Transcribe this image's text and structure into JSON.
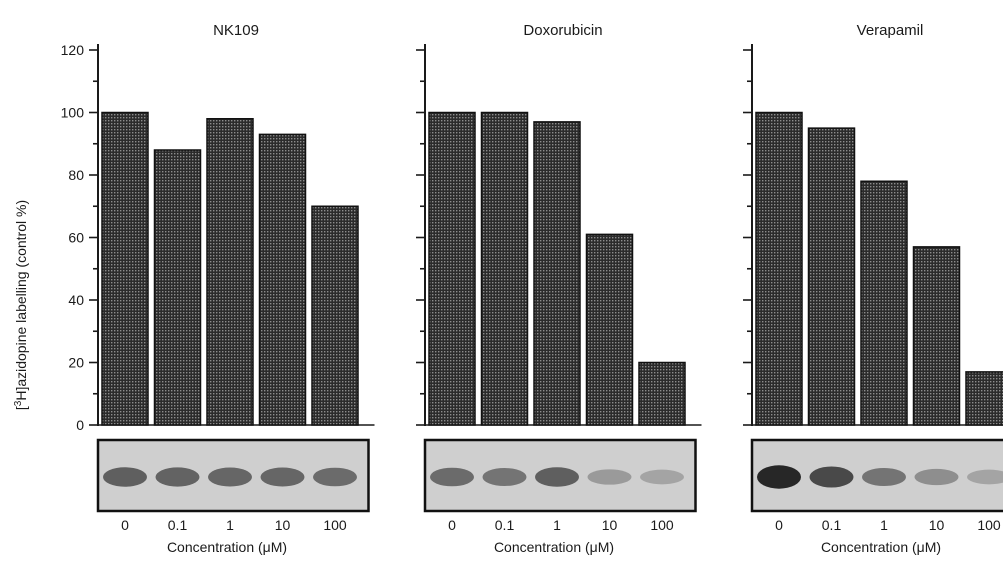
{
  "figure": {
    "ylabel_prefix": "[",
    "ylabel_sup": "3",
    "ylabel_suffix": "H]azidopine labelling (control %)"
  },
  "chart_data": [
    {
      "type": "bar",
      "title": "NK109",
      "categories": [
        "0",
        "0.1",
        "1",
        "10",
        "100"
      ],
      "values": [
        100,
        88,
        98,
        93,
        70
      ],
      "xlabel": "Concentration (μM)",
      "ylabel": "[3H]azidopine labelling (control %)",
      "ylim": [
        0,
        120
      ],
      "yticks": [
        "0",
        "20",
        "40",
        "60",
        "80",
        "100",
        "120"
      ],
      "blot_intensity": [
        0.62,
        0.6,
        0.58,
        0.58,
        0.55
      ]
    },
    {
      "type": "bar",
      "title": "Doxorubicin",
      "categories": [
        "0",
        "0.1",
        "1",
        "10",
        "100"
      ],
      "values": [
        100,
        100,
        97,
        61,
        20
      ],
      "xlabel": "Concentration (μM)",
      "ylim": [
        0,
        120
      ],
      "blot_intensity": [
        0.55,
        0.5,
        0.62,
        0.28,
        0.22
      ]
    },
    {
      "type": "bar",
      "title": "Verapamil",
      "categories": [
        "0",
        "0.1",
        "1",
        "10",
        "100"
      ],
      "values": [
        100,
        95,
        78,
        57,
        17
      ],
      "xlabel": "Concentration (μM)",
      "ylim": [
        0,
        120
      ],
      "blot_intensity": [
        0.95,
        0.75,
        0.5,
        0.35,
        0.22
      ]
    }
  ],
  "style": {
    "bar_fill": "#3a3a3a",
    "axis_color": "#1a1a1a",
    "blot_background": "#cfcfcf"
  }
}
